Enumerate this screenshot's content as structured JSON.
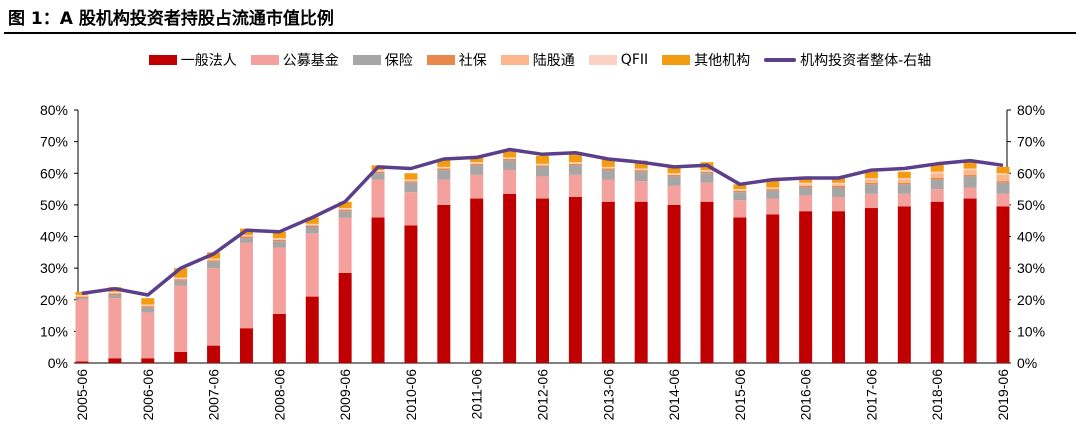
{
  "title": "图 1：A 股机构投资者持股占流通市值比例",
  "chart_data": {
    "type": "bar",
    "stacked": true,
    "categories": [
      "2005-06",
      "2005-12",
      "2006-06",
      "2006-12",
      "2007-06",
      "2007-12",
      "2008-06",
      "2008-12",
      "2009-06",
      "2009-12",
      "2010-06",
      "2010-12",
      "2011-06",
      "2011-12",
      "2012-06",
      "2012-12",
      "2013-06",
      "2013-12",
      "2014-06",
      "2014-12",
      "2015-06",
      "2015-12",
      "2016-06",
      "2016-12",
      "2017-06",
      "2017-12",
      "2018-06",
      "2018-12",
      "2019-06"
    ],
    "series": [
      {
        "name": "一般法人",
        "color": "#c00000",
        "values": [
          0.5,
          1.5,
          1.5,
          3.5,
          5.5,
          11,
          15.5,
          21,
          28.5,
          46,
          43.5,
          50,
          52,
          53.5,
          52,
          52.5,
          51,
          51,
          50,
          51,
          46,
          47,
          48,
          48,
          49,
          49.5,
          51,
          52,
          49.5
        ]
      },
      {
        "name": "公募基金",
        "color": "#f4a09c",
        "values": [
          19.5,
          19,
          14.5,
          21,
          24.5,
          27,
          21,
          20,
          17.5,
          12,
          10.5,
          8,
          7.5,
          7.5,
          7,
          7,
          7,
          6.5,
          6,
          6,
          5.5,
          5,
          5,
          4.5,
          4.5,
          4,
          4,
          3.5,
          4
        ]
      },
      {
        "name": "保险",
        "color": "#a6a6a6",
        "values": [
          0.5,
          1,
          1.5,
          1.5,
          2,
          1.5,
          2,
          2,
          2,
          2,
          3,
          3,
          3,
          3,
          3,
          3,
          3,
          3,
          3,
          3,
          2.5,
          2.5,
          2.5,
          3,
          3,
          3,
          3,
          3.5,
          3.5
        ]
      },
      {
        "name": "社保",
        "color": "#e8894b",
        "values": [
          0.5,
          0.5,
          0.5,
          0.5,
          0.5,
          0.5,
          0.5,
          0.5,
          0.5,
          0.5,
          0.5,
          0.5,
          0.5,
          0.5,
          0.5,
          0.5,
          0.5,
          0.5,
          0.5,
          0.5,
          0.5,
          0.5,
          0.5,
          0.5,
          0.5,
          0.5,
          0.5,
          0.5,
          0.5
        ]
      },
      {
        "name": "陆股通",
        "color": "#fbb68c",
        "values": [
          0,
          0,
          0,
          0,
          0,
          0,
          0,
          0,
          0,
          0,
          0,
          0,
          0,
          0,
          0,
          0,
          0,
          0,
          0,
          0,
          0,
          0,
          0.5,
          0.5,
          1,
          1,
          1.5,
          1.5,
          2
        ]
      },
      {
        "name": "QFII",
        "color": "#fbd2c1",
        "values": [
          0.5,
          0.5,
          0.5,
          0.5,
          0.5,
          0.5,
          0.5,
          0.5,
          0.5,
          0.5,
          0.5,
          0.5,
          0.5,
          0.5,
          0.5,
          0.5,
          0.5,
          0.5,
          0.5,
          0.5,
          0.5,
          0.5,
          0.5,
          0.5,
          0.5,
          0.5,
          0.5,
          0.5,
          0.5
        ]
      },
      {
        "name": "其他机构",
        "color": "#f39c12",
        "values": [
          1,
          1.5,
          2,
          3,
          2,
          2,
          2,
          2,
          2,
          1.5,
          2,
          2.5,
          2,
          2.5,
          2.5,
          2.5,
          2.5,
          2.5,
          2.5,
          2.5,
          1.5,
          2.5,
          2,
          2,
          2,
          2,
          2.5,
          2,
          2
        ]
      }
    ],
    "line": {
      "name": "机构投资者整体-右轴",
      "color": "#5b3f8a",
      "values": [
        22,
        23.5,
        21.5,
        30,
        34.5,
        42,
        41.5,
        46,
        51,
        62,
        61.5,
        64.5,
        65,
        67.5,
        66,
        66.5,
        64.5,
        63.5,
        62,
        62.5,
        56.5,
        58,
        58.5,
        58.5,
        61,
        61.5,
        63,
        64,
        62.5
      ]
    },
    "left_axis": {
      "ylim": [
        0,
        80
      ],
      "ticks": [
        "0%",
        "10%",
        "20%",
        "30%",
        "40%",
        "50%",
        "60%",
        "70%",
        "80%"
      ]
    },
    "right_axis": {
      "ylim": [
        0,
        80
      ],
      "ticks": [
        "0%",
        "10%",
        "20%",
        "30%",
        "40%",
        "50%",
        "60%",
        "70%",
        "80%"
      ]
    },
    "xlabel_every": 2
  }
}
